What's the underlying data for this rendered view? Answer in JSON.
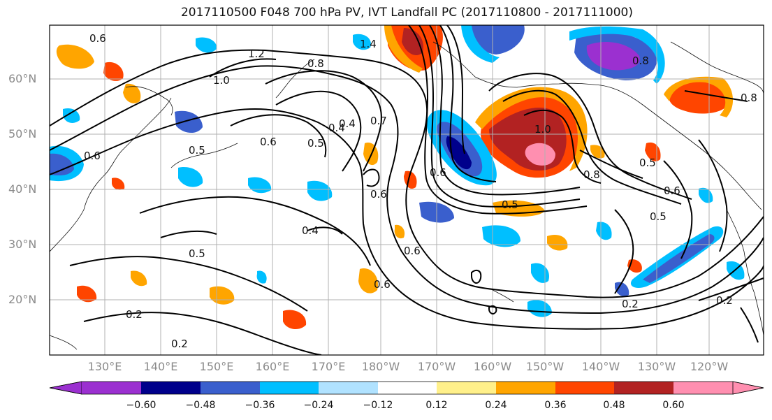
{
  "title": "2017110500 F048 700 hPa PV, IVT Landfall PC (2017110800 - 2017111000)",
  "map": {
    "lat_labels": [
      "60°N",
      "50°N",
      "40°N",
      "30°N",
      "20°N"
    ],
    "lon_labels": [
      "130°E",
      "140°E",
      "150°E",
      "160°E",
      "170°E",
      "180°W",
      "170°W",
      "160°W",
      "150°W",
      "140°W",
      "130°W",
      "120°W"
    ],
    "contour_labels": [
      "0.6",
      "1.2",
      "1.4",
      "0.8",
      "1.0",
      "0.5",
      "0.4",
      "0.6",
      "0.7",
      "0.5",
      "0.6",
      "0.4",
      "0.5",
      "0.6",
      "0.5",
      "0.6",
      "0.2",
      "0.2",
      "0.2",
      "0.8",
      "0.6",
      "0.8",
      "0.5",
      "0.6",
      "0.5",
      "0.4",
      "0.6",
      "0.8",
      "1.0",
      "0.2"
    ]
  },
  "colorbar": {
    "ticks": [
      "−0.60",
      "−0.48",
      "−0.36",
      "−0.24",
      "−0.12",
      "0.12",
      "0.24",
      "0.36",
      "0.48",
      "0.60"
    ],
    "colors": [
      "#9b30d0",
      "#00008b",
      "#3a5fcd",
      "#00bfff",
      "#b0e2ff",
      "#ffffff",
      "#fff08a",
      "#ffa500",
      "#ff4500",
      "#b22222",
      "#ff8fb0"
    ]
  }
}
